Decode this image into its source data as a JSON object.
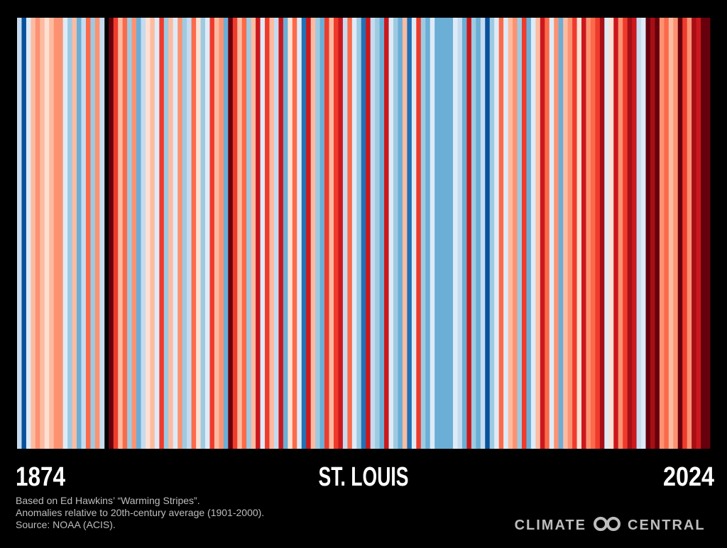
{
  "chart_data": {
    "type": "stripes",
    "title": "ST. LOUIS",
    "start_label": "1874",
    "end_label": "2024",
    "notes": [
      "Based on Ed Hawkins’ “Warming Stripes”.",
      "Anomalies relative to 20th-century average (1901-2000).",
      "Source: NOAA (ACIS)."
    ],
    "logo": [
      "CLIMATE",
      "CENTRAL"
    ],
    "colors": [
      "#c6dbef",
      "#08519c",
      "#deebf7",
      "#fcbba1",
      "#fc9272",
      "#fcbba1",
      "#fee0d2",
      "#fcbba1",
      "#fc9272",
      "#fc9272",
      "#deebf7",
      "#9ecae1",
      "#fcbba1",
      "#6baed6",
      "#c6dbef",
      "#fb6a4a",
      "#9ecae1",
      "#fc9272",
      "#c6dbef",
      null,
      "#67000d",
      "#ef3b2c",
      "#fcbba1",
      "#fb6a4a",
      "#9ecae1",
      "#fc9272",
      "#6baed6",
      "#c6dbef",
      "#fee0d2",
      "#fcbba1",
      "#deebf7",
      "#ef3b2c",
      "#9ecae1",
      "#fcbba1",
      "#deebf7",
      "#fc9272",
      "#9ecae1",
      "#c6dbef",
      "#fb6a4a",
      "#fee0d2",
      "#9ecae1",
      "#deebf7",
      "#ef3b2c",
      "#fcbba1",
      "#fc9272",
      "#6baed6",
      "#67000d",
      "#ef3b2c",
      "#fcbba1",
      "#fb6a4a",
      "#9ecae1",
      "#fcbba1",
      "#cb181d",
      "#deebf7",
      "#ef3b2c",
      "#fcbba1",
      "#c6dbef",
      "#cb181d",
      "#6baed6",
      "#fee0d2",
      "#fb6a4a",
      "#deebf7",
      "#2171b5",
      "#cb181d",
      "#fcbba1",
      "#9ecae1",
      "#6baed6",
      "#ef3b2c",
      "#fcbba1",
      "#ef3b2c",
      "#cb181d",
      "#c6dbef",
      "#fb6a4a",
      "#deebf7",
      "#9ecae1",
      "#2171b5",
      "#cb181d",
      "#c6dbef",
      "#9ecae1",
      "#6baed6",
      "#cb181d",
      "#deebf7",
      "#9ecae1",
      "#6baed6",
      "#fcbba1",
      "#2171b5",
      "#deebf7",
      "#ef3b2c",
      "#9ecae1",
      "#6baed6",
      "#deebf7",
      "#6baed6",
      "#6baed6",
      "#6baed6",
      "#6baed6",
      "#deebf7",
      "#c6dbef",
      "#6baed6",
      "#cb181d",
      "#9ecae1",
      "#6baed6",
      "#c6dbef",
      "#08519c",
      "#9ecae1",
      "#deebf7",
      "#fb6a4a",
      "#deebf7",
      "#fcbba1",
      "#fc9272",
      "#9ecae1",
      "#ef3b2c",
      "#6baed6",
      "#deebf7",
      "#fcbba1",
      "#cb181d",
      "#fb6a4a",
      "#deebf7",
      "#fc9272",
      "#6baed6",
      "#fcbba1",
      "#fc9272",
      "#ef3b2c",
      "#fee0d2",
      "#cb181d",
      "#fc9272",
      "#fb6a4a",
      "#ef3b2c",
      "#a50f15",
      "#deebf7",
      "#fee0d2",
      "#cb181d",
      "#fc9272",
      "#ef3b2c",
      "#a50f15",
      "#cb181d",
      "#c6dbef",
      "#deebf7",
      "#67000d",
      "#a50f15",
      "#67000d",
      "#fc9272",
      "#fb6a4a",
      "#fcbba1",
      "#fc9272",
      "#67000d",
      "#ef3b2c",
      "#fc9272",
      "#a50f15",
      "#cb181d",
      "#67000d",
      "#67000d"
    ]
  }
}
